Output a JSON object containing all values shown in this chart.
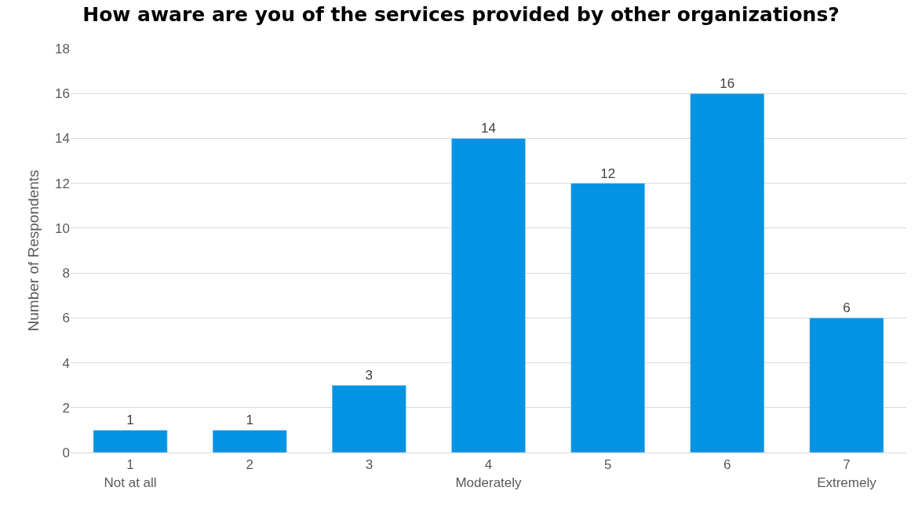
{
  "chart_data": {
    "type": "bar",
    "title": "How aware are you of the services provided by other organizations?",
    "ylabel": "Number of Respondents",
    "categories": [
      "1\nNot at all",
      "2",
      "3",
      "4\nModerately",
      "5",
      "6",
      "7\nExtremely"
    ],
    "values": [
      1,
      1,
      3,
      14,
      12,
      16,
      6
    ],
    "color": "#0593e3",
    "ylim": [
      0,
      18
    ],
    "yticks": [
      0,
      2,
      4,
      6,
      8,
      10,
      12,
      14,
      16,
      18
    ],
    "grid": "y",
    "data_labels": true,
    "legend": false
  }
}
